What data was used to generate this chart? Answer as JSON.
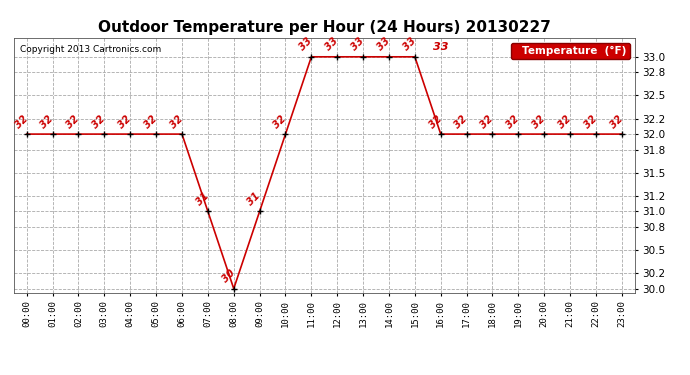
{
  "title": "Outdoor Temperature per Hour (24 Hours) 20130227",
  "copyright": "Copyright 2013 Cartronics.com",
  "legend_label": "Temperature  (°F)",
  "hours": [
    0,
    1,
    2,
    3,
    4,
    5,
    6,
    7,
    8,
    9,
    10,
    11,
    12,
    13,
    14,
    15,
    16,
    17,
    18,
    19,
    20,
    21,
    22,
    23
  ],
  "temps": [
    32,
    32,
    32,
    32,
    32,
    32,
    32,
    31,
    30,
    31,
    32,
    33,
    33,
    33,
    33,
    33,
    32,
    32,
    32,
    32,
    32,
    32,
    32,
    32
  ],
  "xlim": [
    -0.5,
    23.5
  ],
  "ylim": [
    29.95,
    33.25
  ],
  "yticks": [
    30.0,
    30.2,
    30.5,
    30.8,
    31.0,
    31.2,
    31.5,
    31.8,
    32.0,
    32.2,
    32.5,
    32.8,
    33.0
  ],
  "line_color": "#cc0000",
  "marker_color": "#000000",
  "bg_color": "#ffffff",
  "grid_color": "#aaaaaa",
  "title_fontsize": 11,
  "annotation_fontsize": 7,
  "legend_bg": "#cc0000",
  "legend_fg": "#ffffff",
  "peak_label_hour": 16,
  "peak_label_val": 33
}
